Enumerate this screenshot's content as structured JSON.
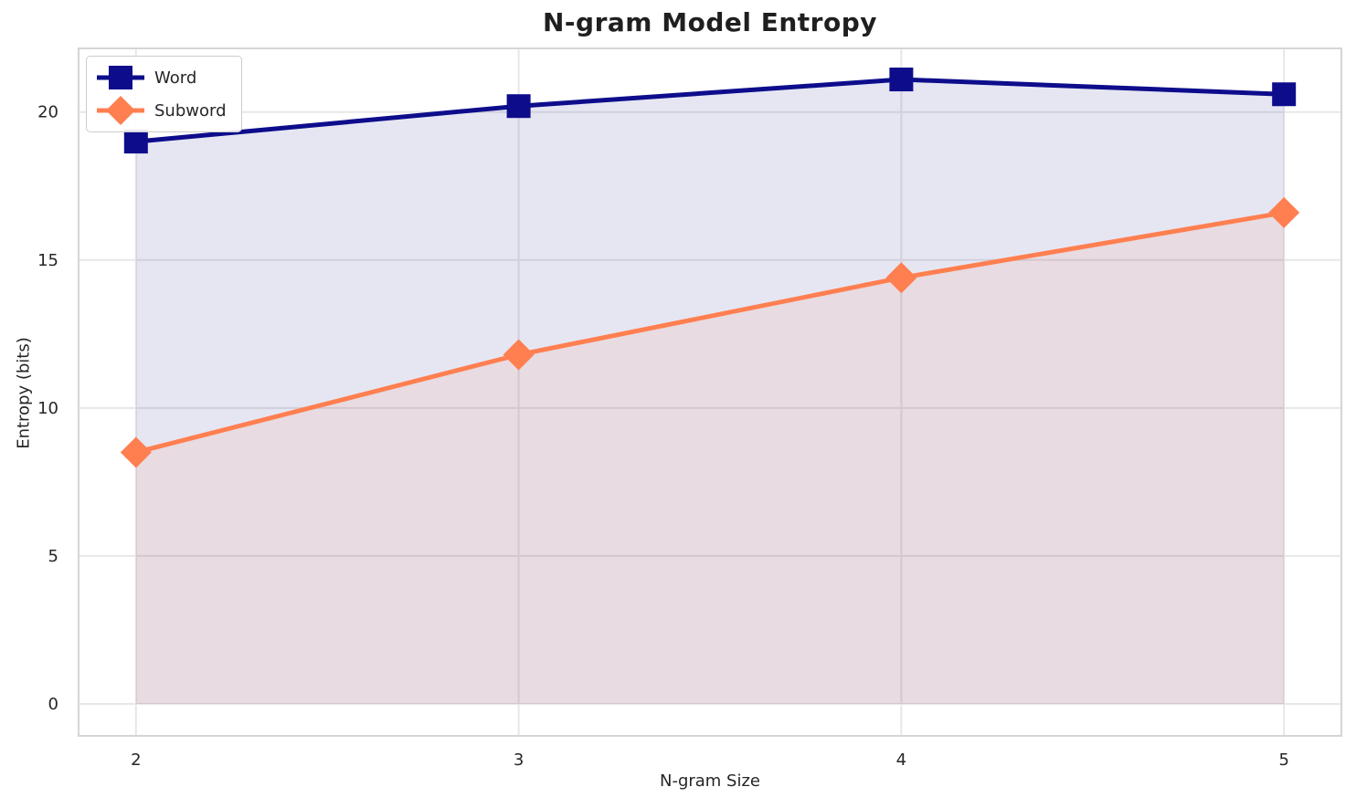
{
  "chart_data": {
    "type": "line",
    "title": "N-gram Model Entropy",
    "xlabel": "N-gram Size",
    "ylabel": "Entropy (bits)",
    "x": [
      2,
      3,
      4,
      5
    ],
    "series": [
      {
        "name": "Word",
        "values": [
          19.0,
          20.2,
          21.1,
          20.6
        ],
        "color": "#0D0D8C",
        "marker": "square",
        "fill_to_zero": true
      },
      {
        "name": "Subword",
        "values": [
          8.5,
          11.8,
          14.4,
          16.6
        ],
        "color": "#FF7F50",
        "marker": "diamond",
        "fill_to_zero": true
      }
    ],
    "x_ticks": [
      2,
      3,
      4,
      5
    ],
    "y_ticks": [
      0,
      5,
      10,
      15,
      20
    ],
    "xlim": [
      1.85,
      5.15
    ],
    "ylim": [
      -1.08,
      22.15
    ],
    "grid": true,
    "legend_position": "upper left",
    "fill_opacity": 0.1,
    "style": {
      "grid_color": "#e7e7e7",
      "spine_color": "#d5d5d5",
      "tick_label_color": "#262626",
      "line_width": 5
    }
  }
}
